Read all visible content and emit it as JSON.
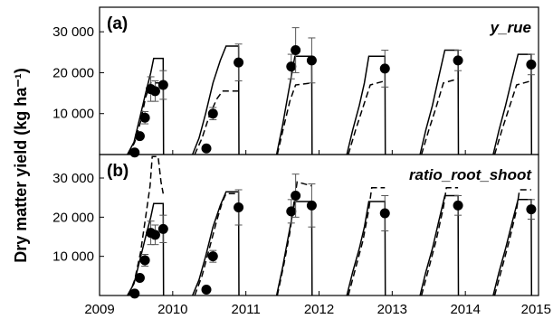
{
  "y_axis_title": "Dry matter yield (kg ha⁻¹)",
  "chart_data": [
    {
      "type": "line",
      "panel_label": "(a)",
      "panel_name": "y_rue",
      "x_ticks": [
        "2009",
        "2010",
        "2011",
        "2012",
        "2013",
        "2014",
        "2015"
      ],
      "y_ticks": [
        "10 000",
        "20 000",
        "30 000"
      ],
      "xlim": [
        2009,
        2015
      ],
      "ylim": [
        0,
        36000
      ],
      "series": [
        {
          "style": "solid",
          "segments": [
            {
              "x": [
                2009.38,
                2009.47,
                2009.55,
                2009.63,
                2009.7,
                2009.74,
                2009.8,
                2009.87,
                2009.875
              ],
              "y": [
                0,
                3000,
                9000,
                15000,
                20000,
                23500,
                23500,
                23500,
                0
              ]
            },
            {
              "x": [
                2010.27,
                2010.36,
                2010.45,
                2010.55,
                2010.65,
                2010.73,
                2010.9,
                2010.905
              ],
              "y": [
                0,
                4000,
                10000,
                17500,
                23000,
                26500,
                26500,
                0
              ]
            },
            {
              "x": [
                2011.42,
                2011.5,
                2011.57,
                2011.62,
                2011.67,
                2011.9,
                2011.905
              ],
              "y": [
                0,
                7000,
                14000,
                19000,
                24000,
                24000,
                0
              ]
            },
            {
              "x": [
                2012.38,
                2012.46,
                2012.55,
                2012.62,
                2012.68,
                2012.9,
                2012.905
              ],
              "y": [
                0,
                6000,
                12000,
                17500,
                24000,
                24000,
                0
              ]
            },
            {
              "x": [
                2013.38,
                2013.46,
                2013.55,
                2013.63,
                2013.72,
                2013.9,
                2013.905
              ],
              "y": [
                0,
                6000,
                12000,
                18500,
                25500,
                25500,
                0
              ]
            },
            {
              "x": [
                2014.38,
                2014.46,
                2014.55,
                2014.63,
                2014.72,
                2014.9,
                2014.905
              ],
              "y": [
                0,
                6000,
                12000,
                18000,
                24500,
                24500,
                0
              ]
            }
          ]
        },
        {
          "style": "dashed",
          "segments": [
            {
              "x": [
                2009.4,
                2009.48,
                2009.56,
                2009.63,
                2009.7,
                2009.87
              ],
              "y": [
                0,
                3000,
                8000,
                14000,
                17500,
                17500
              ]
            },
            {
              "x": [
                2010.3,
                2010.4,
                2010.5,
                2010.6,
                2010.68,
                2010.9
              ],
              "y": [
                0,
                4000,
                9500,
                13500,
                15500,
                15500
              ]
            },
            {
              "x": [
                2011.43,
                2011.52,
                2011.6,
                2011.68,
                2011.9
              ],
              "y": [
                0,
                7000,
                13000,
                17000,
                17500
              ]
            },
            {
              "x": [
                2012.4,
                2012.5,
                2012.6,
                2012.7,
                2012.9
              ],
              "y": [
                0,
                6000,
                11500,
                17000,
                18000
              ]
            },
            {
              "x": [
                2013.4,
                2013.5,
                2013.6,
                2013.7,
                2013.9
              ],
              "y": [
                0,
                6000,
                11500,
                17500,
                18500
              ]
            },
            {
              "x": [
                2014.4,
                2014.5,
                2014.6,
                2014.7,
                2014.9
              ],
              "y": [
                0,
                6000,
                11500,
                17000,
                18000
              ]
            }
          ]
        }
      ],
      "observations": [
        {
          "x": 2009.48,
          "y": 500,
          "err": 0
        },
        {
          "x": 2009.55,
          "y": 4500,
          "err": 0
        },
        {
          "x": 2009.62,
          "y": 9000,
          "err": 1500
        },
        {
          "x": 2009.7,
          "y": 16000,
          "err": 3000
        },
        {
          "x": 2009.76,
          "y": 15500,
          "err": 2500
        },
        {
          "x": 2009.87,
          "y": 17000,
          "err": 3500
        },
        {
          "x": 2010.46,
          "y": 1500,
          "err": 0
        },
        {
          "x": 2010.55,
          "y": 10000,
          "err": 1500
        },
        {
          "x": 2010.9,
          "y": 22500,
          "err": 4500
        },
        {
          "x": 2011.62,
          "y": 21500,
          "err": 3000
        },
        {
          "x": 2011.68,
          "y": 25500,
          "err": 5500
        },
        {
          "x": 2011.9,
          "y": 23000,
          "err": 5500
        },
        {
          "x": 2012.9,
          "y": 21000,
          "err": 4500
        },
        {
          "x": 2013.9,
          "y": 23000,
          "err": 2500
        },
        {
          "x": 2014.9,
          "y": 22000,
          "err": 2500
        }
      ]
    },
    {
      "type": "line",
      "panel_label": "(b)",
      "panel_name": "ratio_root_shoot",
      "x_ticks": [
        "2009",
        "2010",
        "2011",
        "2012",
        "2013",
        "2014",
        "2015"
      ],
      "y_ticks": [
        "10 000",
        "20 000",
        "30 000"
      ],
      "xlim": [
        2009,
        2015
      ],
      "ylim": [
        0,
        36000
      ],
      "series": [
        {
          "style": "solid",
          "segments": [
            {
              "x": [
                2009.38,
                2009.47,
                2009.55,
                2009.63,
                2009.7,
                2009.74,
                2009.8,
                2009.87,
                2009.875
              ],
              "y": [
                0,
                3000,
                9000,
                15000,
                20000,
                23500,
                23500,
                23500,
                0
              ]
            },
            {
              "x": [
                2010.27,
                2010.36,
                2010.45,
                2010.55,
                2010.65,
                2010.73,
                2010.9,
                2010.905
              ],
              "y": [
                0,
                4000,
                10000,
                17500,
                23000,
                26500,
                26500,
                0
              ]
            },
            {
              "x": [
                2011.42,
                2011.5,
                2011.57,
                2011.62,
                2011.67,
                2011.9,
                2011.905
              ],
              "y": [
                0,
                7000,
                14000,
                19000,
                24000,
                24000,
                0
              ]
            },
            {
              "x": [
                2012.38,
                2012.46,
                2012.55,
                2012.62,
                2012.68,
                2012.9,
                2012.905
              ],
              "y": [
                0,
                6000,
                12000,
                17500,
                24000,
                24000,
                0
              ]
            },
            {
              "x": [
                2013.38,
                2013.46,
                2013.55,
                2013.63,
                2013.72,
                2013.9,
                2013.905
              ],
              "y": [
                0,
                6000,
                12000,
                18500,
                25500,
                25500,
                0
              ]
            },
            {
              "x": [
                2014.38,
                2014.46,
                2014.55,
                2014.63,
                2014.72,
                2014.9,
                2014.905
              ],
              "y": [
                0,
                6000,
                12000,
                18000,
                24500,
                24500,
                0
              ]
            }
          ]
        },
        {
          "style": "dashed",
          "segments": [
            {
              "x": [
                2009.4,
                2009.48,
                2009.56,
                2009.63,
                2009.69,
                2009.72,
                2009.8,
                2009.84,
                2009.87
              ],
              "y": [
                0,
                4000,
                11000,
                20000,
                28000,
                35500,
                35500,
                29000,
                26000
              ]
            },
            {
              "x": [
                2010.3,
                2010.4,
                2010.5,
                2010.6,
                2010.68,
                2010.73,
                2010.9
              ],
              "y": [
                0,
                5000,
                12000,
                19000,
                24000,
                26000,
                26000
              ]
            },
            {
              "x": [
                2011.43,
                2011.52,
                2011.6,
                2011.66,
                2011.7,
                2011.9
              ],
              "y": [
                0,
                8000,
                16000,
                24000,
                29000,
                28000
              ]
            },
            {
              "x": [
                2012.4,
                2012.5,
                2012.6,
                2012.68,
                2012.72,
                2012.9
              ],
              "y": [
                0,
                7000,
                14000,
                22000,
                27500,
                27500
              ]
            },
            {
              "x": [
                2013.4,
                2013.5,
                2013.6,
                2013.7,
                2013.74,
                2013.9
              ],
              "y": [
                0,
                7000,
                14000,
                22500,
                27500,
                27500
              ]
            },
            {
              "x": [
                2014.4,
                2014.5,
                2014.6,
                2014.7,
                2014.74,
                2014.9
              ],
              "y": [
                0,
                7000,
                14000,
                22000,
                27000,
                27000
              ]
            }
          ]
        }
      ],
      "observations": [
        {
          "x": 2009.48,
          "y": 500,
          "err": 0
        },
        {
          "x": 2009.55,
          "y": 4500,
          "err": 0
        },
        {
          "x": 2009.62,
          "y": 9000,
          "err": 1500
        },
        {
          "x": 2009.7,
          "y": 16000,
          "err": 3000
        },
        {
          "x": 2009.76,
          "y": 15500,
          "err": 2500
        },
        {
          "x": 2009.87,
          "y": 17000,
          "err": 3500
        },
        {
          "x": 2010.46,
          "y": 1500,
          "err": 0
        },
        {
          "x": 2010.55,
          "y": 10000,
          "err": 1500
        },
        {
          "x": 2010.9,
          "y": 22500,
          "err": 4500
        },
        {
          "x": 2011.62,
          "y": 21500,
          "err": 3000
        },
        {
          "x": 2011.68,
          "y": 25500,
          "err": 5500
        },
        {
          "x": 2011.9,
          "y": 23000,
          "err": 5500
        },
        {
          "x": 2012.9,
          "y": 21000,
          "err": 4500
        },
        {
          "x": 2013.9,
          "y": 23000,
          "err": 2500
        },
        {
          "x": 2014.9,
          "y": 22000,
          "err": 2500
        }
      ]
    }
  ]
}
